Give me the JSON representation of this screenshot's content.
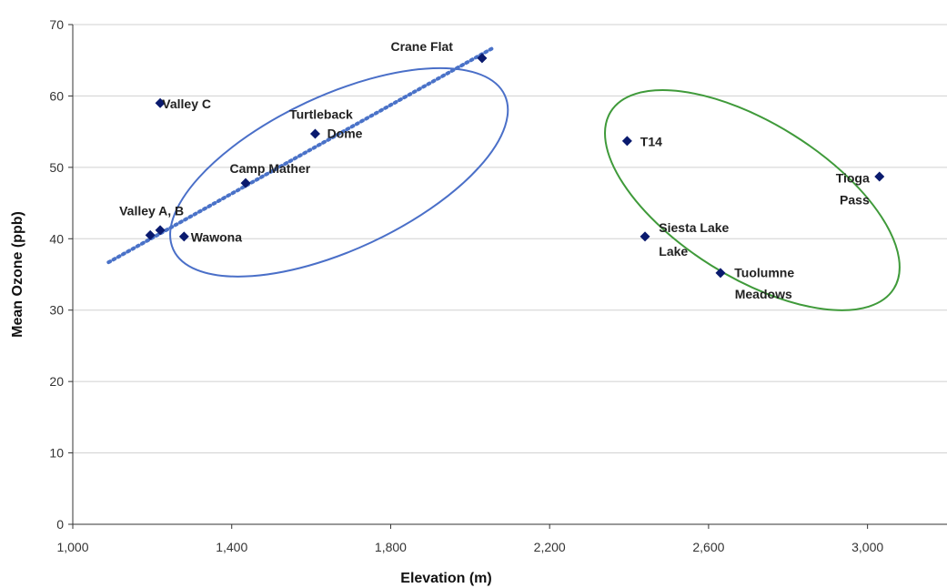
{
  "chart_data": {
    "type": "scatter",
    "title": "",
    "xlabel": "Elevation (m)",
    "ylabel": "Mean Ozone (ppb)",
    "xlim": [
      1000,
      3200
    ],
    "ylim": [
      0,
      70
    ],
    "x_ticks": [
      1000,
      1400,
      1800,
      2200,
      2600,
      3000
    ],
    "x_tick_labels": [
      "1,000",
      "1,400",
      "1,800",
      "2,200",
      "2,600",
      "3,000"
    ],
    "y_ticks": [
      0,
      10,
      20,
      30,
      40,
      50,
      60,
      70
    ],
    "y_tick_labels": [
      "0",
      "10",
      "20",
      "30",
      "40",
      "50",
      "60",
      "70"
    ],
    "grid": "horizontal",
    "legend": "none",
    "colors": {
      "marker": "#0a1a6e",
      "trendline": "#4a72c8",
      "group1_ellipse": "#4a6fc8",
      "group2_ellipse": "#3f9a3a",
      "gridline": "#d0d0d0",
      "axis": "#333333"
    },
    "points": [
      {
        "x": 1220,
        "y": 59.0
      },
      {
        "x": 1195,
        "y": 40.5
      },
      {
        "x": 1220,
        "y": 41.2
      },
      {
        "x": 1280,
        "y": 40.3
      },
      {
        "x": 1435,
        "y": 47.8
      },
      {
        "x": 1610,
        "y": 54.7
      },
      {
        "x": 2030,
        "y": 65.3
      },
      {
        "x": 2395,
        "y": 53.7
      },
      {
        "x": 2440,
        "y": 40.3
      },
      {
        "x": 2630,
        "y": 35.2
      },
      {
        "x": 3030,
        "y": 48.7
      }
    ],
    "point_labels": [
      {
        "text": "Valley C",
        "x": 1225,
        "y": 58.3
      },
      {
        "text": "Valley A, B",
        "x": 1117,
        "y": 43.3
      },
      {
        "text": "Wawona",
        "x": 1297,
        "y": 39.6
      },
      {
        "text": "Camp Mather",
        "x": 1395,
        "y": 49.2
      },
      {
        "text": "Turtleback",
        "x": 1545,
        "y": 56.8
      },
      {
        "text": "Dome",
        "x": 1640,
        "y": 54.1
      },
      {
        "text": "Crane Flat",
        "x": 1800,
        "y": 66.3
      },
      {
        "text": "T14",
        "x": 2428,
        "y": 53.0
      },
      {
        "text": "Siesta Lake",
        "x": 2475,
        "y": 40.9
      },
      {
        "text": "Lake",
        "x": 2475,
        "y": 37.6
      },
      {
        "text": "Tuolumne",
        "x": 2665,
        "y": 34.6
      },
      {
        "text": "Meadows",
        "x": 2666,
        "y": 31.6
      },
      {
        "text": "Tioga",
        "x": 2920,
        "y": 47.9
      },
      {
        "text": "Pass",
        "x": 2930,
        "y": 44.8
      }
    ],
    "trendline": {
      "x": [
        1090,
        2060
      ],
      "y": [
        36.7,
        66.8
      ]
    },
    "group_ellipses": [
      {
        "name": "group-1",
        "cx": 1670,
        "cy": 49.3,
        "rx": 460,
        "ry": 10.8,
        "rotation": -25
      },
      {
        "name": "group-2",
        "cx": 2710,
        "cy": 45.4,
        "rx": 420,
        "ry": 10.8,
        "rotation": 32
      }
    ]
  }
}
